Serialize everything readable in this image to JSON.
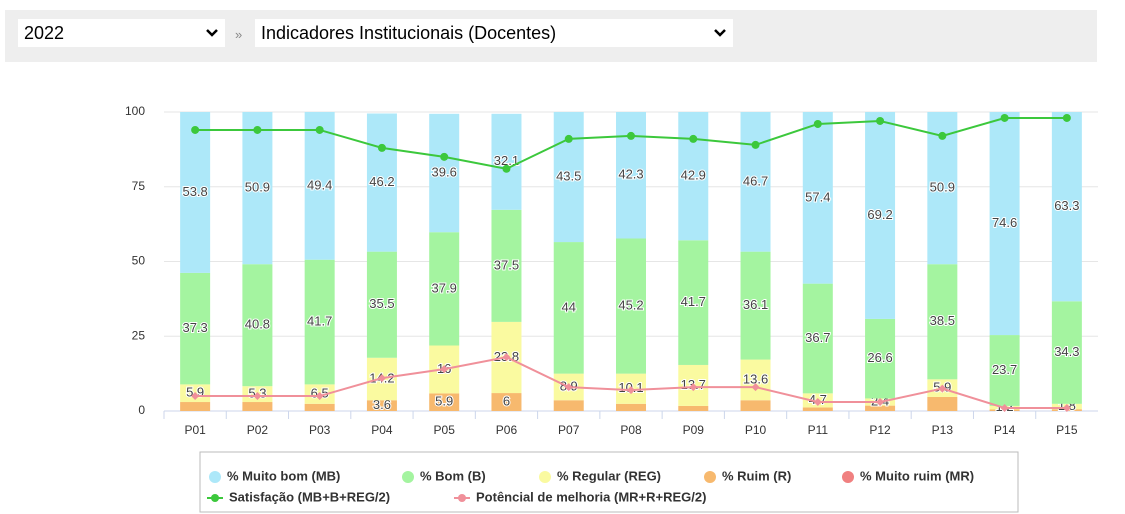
{
  "header": {
    "year": "2022",
    "separator": "»",
    "indicator": "Indicadores Institucionais (Docentes)"
  },
  "chart_data": {
    "type": "bar",
    "stacked": true,
    "categories": [
      "P01",
      "P02",
      "P03",
      "P04",
      "P05",
      "P06",
      "P07",
      "P08",
      "P09",
      "P10",
      "P11",
      "P12",
      "P13",
      "P14",
      "P15"
    ],
    "ylim": [
      0,
      100
    ],
    "yticks": [
      0,
      25,
      50,
      75,
      100
    ],
    "grid": true,
    "series": [
      {
        "name": "% Muito ruim (MR)",
        "color": "#f08080",
        "values": [
          0,
          0,
          0,
          0,
          0,
          0,
          0,
          0,
          0,
          0,
          0,
          0,
          0,
          0,
          0
        ]
      },
      {
        "name": "% Ruim (R)",
        "color": "#f7b96e",
        "values": [
          3.0,
          3.0,
          2.4,
          3.6,
          5.9,
          6,
          3.6,
          2.4,
          1.7,
          3.6,
          1.2,
          1.8,
          4.7,
          0.5,
          0.6
        ],
        "value_labels": [
          null,
          null,
          null,
          "3.6",
          "5.9",
          "6",
          null,
          null,
          null,
          null,
          null,
          null,
          null,
          null,
          null
        ]
      },
      {
        "name": "% Regular (REG)",
        "color": "#fafaa0",
        "values": [
          5.9,
          5.3,
          6.5,
          14.2,
          16,
          23.8,
          8.9,
          10.1,
          13.7,
          13.6,
          4.7,
          2.4,
          5.9,
          1.2,
          1.8
        ]
      },
      {
        "name": "% Bom (B)",
        "color": "#a4f4a0",
        "values": [
          37.3,
          40.8,
          41.7,
          35.5,
          37.9,
          37.5,
          44,
          45.2,
          41.7,
          36.1,
          36.7,
          26.6,
          38.5,
          23.7,
          34.3
        ]
      },
      {
        "name": "% Muito bom (MB)",
        "color": "#ade8f9",
        "values": [
          53.8,
          50.9,
          49.4,
          46.2,
          39.6,
          32.1,
          43.5,
          42.3,
          42.9,
          46.7,
          57.4,
          69.2,
          50.9,
          74.6,
          63.3
        ]
      }
    ],
    "lines": [
      {
        "name": "Satisfação (MB+B+REG/2)",
        "color": "#3cc83c",
        "values": [
          94,
          94,
          94,
          88,
          85,
          81,
          91,
          92,
          91,
          89,
          96,
          97,
          92,
          98,
          98
        ]
      },
      {
        "name": "Potêncial de melhoria (MR+R+REG/2)",
        "color": "#f0909a",
        "values": [
          5,
          5,
          5,
          11,
          14,
          18,
          8,
          7,
          8,
          8,
          3,
          3,
          7.5,
          1,
          1
        ]
      }
    ],
    "legend_order": [
      4,
      3,
      2,
      1,
      0
    ]
  }
}
